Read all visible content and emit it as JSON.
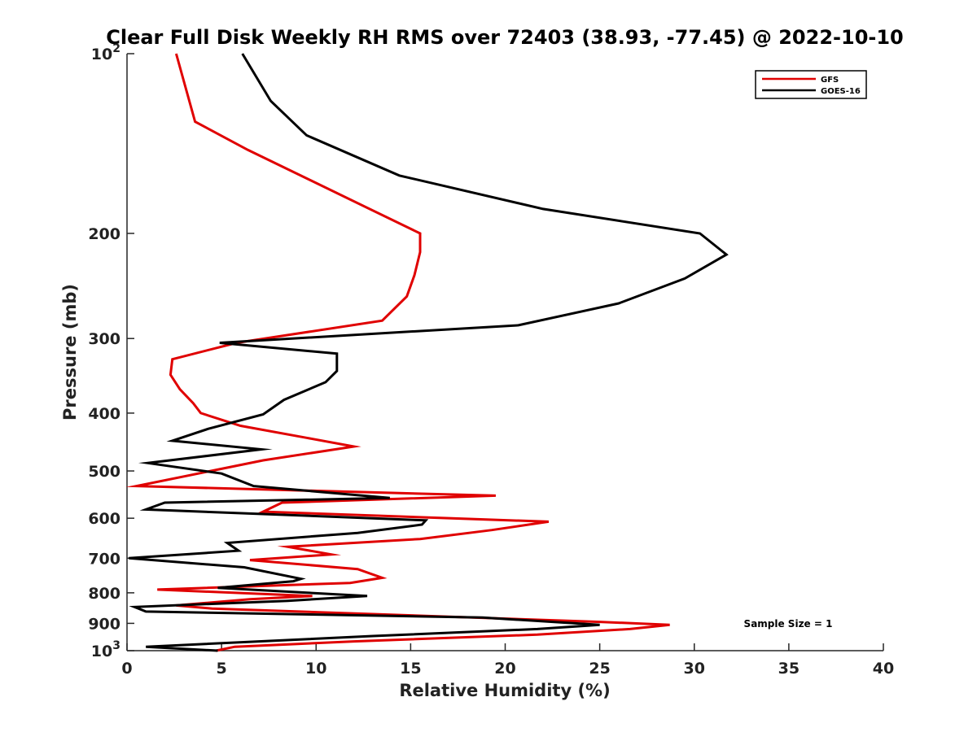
{
  "chart_data": {
    "type": "line",
    "title": "Clear Full Disk Weekly RH RMS over 72403 (38.93, -77.45) @ 2022-10-10",
    "xlabel": "Relative Humidity (%)",
    "ylabel": "Pressure (mb)",
    "xlim": [
      0,
      40
    ],
    "ylim": [
      100,
      1000
    ],
    "y_scale": "log",
    "y_reversed": true,
    "grid": false,
    "legend_position": "top-right",
    "x_ticks": [
      "0",
      "5",
      "10",
      "15",
      "20",
      "25",
      "30",
      "35",
      "40"
    ],
    "y_ticks": [
      {
        "value": 100,
        "label": "10",
        "sup": "2"
      },
      {
        "value": 200,
        "label": "200",
        "sup": ""
      },
      {
        "value": 300,
        "label": "300",
        "sup": ""
      },
      {
        "value": 400,
        "label": "400",
        "sup": ""
      },
      {
        "value": 500,
        "label": "500",
        "sup": ""
      },
      {
        "value": 600,
        "label": "600",
        "sup": ""
      },
      {
        "value": 700,
        "label": "700",
        "sup": ""
      },
      {
        "value": 800,
        "label": "800",
        "sup": ""
      },
      {
        "value": 900,
        "label": "900",
        "sup": ""
      },
      {
        "value": 1000,
        "label": "10",
        "sup": "3"
      }
    ],
    "series": [
      {
        "name": "GFS",
        "color": "#e00000",
        "points": [
          [
            2.6,
            100
          ],
          [
            3.6,
            130
          ],
          [
            6.4,
            145
          ],
          [
            15.5,
            200
          ],
          [
            15.5,
            215
          ],
          [
            15.2,
            235
          ],
          [
            14.8,
            255
          ],
          [
            13.5,
            280
          ],
          [
            5.8,
            305
          ],
          [
            2.4,
            325
          ],
          [
            2.3,
            345
          ],
          [
            2.8,
            365
          ],
          [
            3.5,
            385
          ],
          [
            3.9,
            400
          ],
          [
            6.0,
            420
          ],
          [
            9.5,
            440
          ],
          [
            12.0,
            455
          ],
          [
            7.2,
            480
          ],
          [
            0.5,
            530
          ],
          [
            19.5,
            550
          ],
          [
            8.2,
            565
          ],
          [
            7.2,
            585
          ],
          [
            22.3,
            608
          ],
          [
            19.3,
            628
          ],
          [
            15.5,
            650
          ],
          [
            8.5,
            670
          ],
          [
            10.8,
            690
          ],
          [
            6.5,
            705
          ],
          [
            12.2,
            730
          ],
          [
            13.5,
            755
          ],
          [
            11.8,
            770
          ],
          [
            1.6,
            790
          ],
          [
            9.8,
            810
          ],
          [
            6.5,
            820
          ],
          [
            2.6,
            840
          ],
          [
            4.5,
            850
          ],
          [
            25.0,
            895
          ],
          [
            28.7,
            905
          ],
          [
            26.6,
            920
          ],
          [
            21.7,
            940
          ],
          [
            12.0,
            965
          ],
          [
            5.7,
            985
          ],
          [
            4.7,
            1000
          ]
        ]
      },
      {
        "name": "GOES-16",
        "color": "#000000",
        "points": [
          [
            6.1,
            100
          ],
          [
            7.6,
            120
          ],
          [
            9.5,
            137
          ],
          [
            14.4,
            160
          ],
          [
            22.0,
            182
          ],
          [
            30.3,
            200
          ],
          [
            31.7,
            217
          ],
          [
            29.5,
            238
          ],
          [
            26.0,
            262
          ],
          [
            20.7,
            285
          ],
          [
            4.9,
            305
          ],
          [
            11.1,
            318
          ],
          [
            11.1,
            340
          ],
          [
            10.5,
            355
          ],
          [
            8.3,
            380
          ],
          [
            7.2,
            402
          ],
          [
            4.3,
            425
          ],
          [
            2.4,
            445
          ],
          [
            7.1,
            460
          ],
          [
            1.1,
            485
          ],
          [
            5.0,
            505
          ],
          [
            6.7,
            530
          ],
          [
            13.9,
            555
          ],
          [
            2.0,
            565
          ],
          [
            1.0,
            580
          ],
          [
            15.8,
            605
          ],
          [
            15.6,
            615
          ],
          [
            12.2,
            635
          ],
          [
            5.3,
            660
          ],
          [
            5.9,
            680
          ],
          [
            0.1,
            700
          ],
          [
            6.2,
            725
          ],
          [
            9.2,
            758
          ],
          [
            8.8,
            765
          ],
          [
            4.8,
            785
          ],
          [
            12.7,
            810
          ],
          [
            8.5,
            825
          ],
          [
            0.4,
            845
          ],
          [
            1.0,
            860
          ],
          [
            18.8,
            880
          ],
          [
            25.0,
            905
          ],
          [
            21.7,
            920
          ],
          [
            13.0,
            945
          ],
          [
            1.0,
            985
          ],
          [
            4.8,
            1000
          ]
        ]
      }
    ],
    "annotations": [
      {
        "text": "Sample Size = 1",
        "x": 35,
        "y": 905
      }
    ]
  }
}
